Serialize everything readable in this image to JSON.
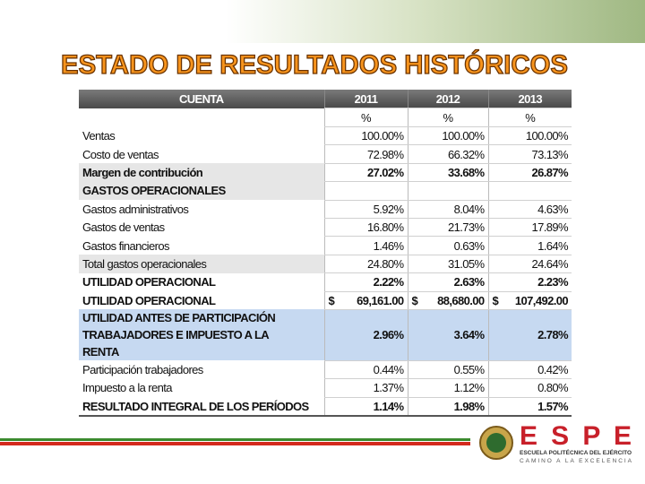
{
  "title": "ESTADO DE RESULTADOS HISTÓRICOS",
  "table": {
    "header": [
      "CUENTA",
      "2011",
      "2012",
      "2013"
    ],
    "units": [
      "%",
      "%",
      "%"
    ],
    "rows": [
      {
        "label": "Ventas",
        "values": [
          "100.00%",
          "100.00%",
          "100.00%"
        ]
      },
      {
        "label": "Costo de ventas",
        "values": [
          "72.98%",
          "66.32%",
          "73.13%"
        ]
      },
      {
        "label": "Margen de contribución",
        "values": [
          "27.02%",
          "33.68%",
          "26.87%"
        ]
      },
      {
        "label": "GASTOS OPERACIONALES"
      },
      {
        "label": "Gastos administrativos",
        "values": [
          "5.92%",
          "8.04%",
          "4.63%"
        ]
      },
      {
        "label": "Gastos de ventas",
        "values": [
          "16.80%",
          "21.73%",
          "17.89%"
        ]
      },
      {
        "label": "Gastos financieros",
        "values": [
          "1.46%",
          "0.63%",
          "1.64%"
        ]
      },
      {
        "label": "Total gastos operacionales",
        "values": [
          "24.80%",
          "31.05%",
          "24.64%"
        ]
      },
      {
        "label": "UTILIDAD OPERACIONAL",
        "values": [
          "2.22%",
          "2.63%",
          "2.23%"
        ]
      },
      {
        "label": "UTILIDAD OPERACIONAL",
        "values": [
          {
            "symbol": "$",
            "amount": "69,161.00"
          },
          {
            "symbol": "$",
            "amount": "88,680.00"
          },
          {
            "symbol": "$",
            "amount": "107,492.00"
          }
        ]
      },
      {
        "label": "UTILIDAD ANTES DE PARTICIPACIÓN TRABAJADORES E IMPUESTO A LA RENTA",
        "values": [
          "2.96%",
          "3.64%",
          "2.78%"
        ]
      },
      {
        "label": "Participación trabajadores",
        "values": [
          "0.44%",
          "0.55%",
          "0.42%"
        ]
      },
      {
        "label": "Impuesto a la renta",
        "values": [
          "1.37%",
          "1.12%",
          "0.80%"
        ]
      },
      {
        "label": "RESULTADO INTEGRAL DE LOS PERÍODOS",
        "values": [
          "1.14%",
          "1.98%",
          "1.57%"
        ]
      }
    ]
  },
  "logo": {
    "name": "E S P E",
    "line1": "ESCUELA POLITÉCNICA DEL EJÉRCITO",
    "line2": "CAMINO A LA EXCELENCIA"
  }
}
